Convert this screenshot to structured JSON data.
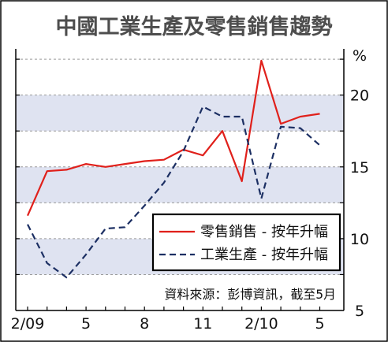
{
  "chart_data": {
    "type": "line",
    "title": "中國工業生產及零售銷售趨勢",
    "unit": "%",
    "source": "資料來源：彭博資訊，截至5月",
    "x_tick_labels": [
      "2/09",
      "5",
      "8",
      "11",
      "2/10",
      "5"
    ],
    "y_tick_labels": [
      "20",
      "15",
      "10",
      "5"
    ],
    "ylim": [
      5,
      23
    ],
    "grid": true,
    "legend_position": "bottom-right",
    "x": [
      "2/09",
      "3/09",
      "4/09",
      "5/09",
      "6/09",
      "7/09",
      "8/09",
      "9/09",
      "10/09",
      "11/09",
      "12/09",
      "1/10",
      "2/10",
      "3/10",
      "4/10",
      "5/10"
    ],
    "series": [
      {
        "name": "零售銷售 - 按年升幅",
        "color": "#e0201b",
        "dash": "solid",
        "values": [
          11.6,
          14.7,
          14.8,
          15.2,
          15.0,
          15.2,
          15.4,
          15.5,
          16.2,
          15.8,
          17.5,
          14.0,
          22.4,
          18.0,
          18.5,
          18.7
        ]
      },
      {
        "name": "工業生產 - 按年升幅",
        "color": "#1c2f63",
        "dash": "dashed",
        "values": [
          11.0,
          8.3,
          7.3,
          8.9,
          10.7,
          10.8,
          12.3,
          13.9,
          16.1,
          19.2,
          18.5,
          18.5,
          12.8,
          17.8,
          17.7,
          16.5
        ]
      }
    ]
  }
}
